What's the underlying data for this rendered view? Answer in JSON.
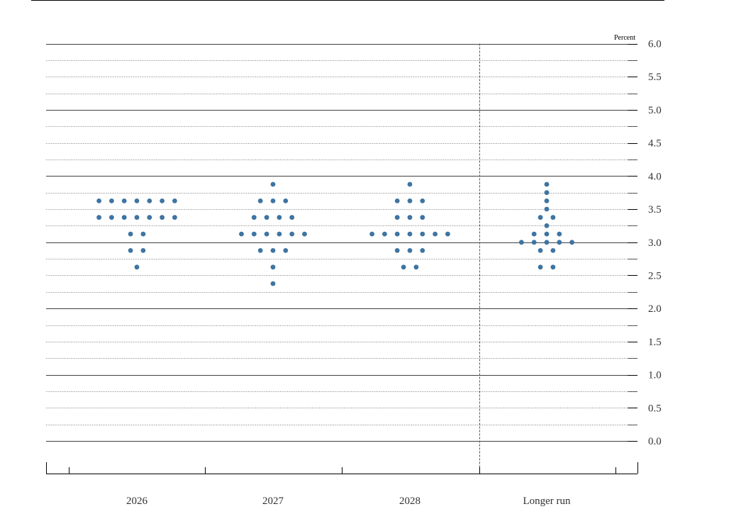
{
  "chart_data": {
    "type": "scatter",
    "unit_label": "Percent",
    "ylim": [
      0,
      6
    ],
    "y_ticks": [
      "6.0",
      "5.5",
      "5.0",
      "4.5",
      "4.0",
      "3.5",
      "3.0",
      "2.5",
      "2.0",
      "1.5",
      "1.0",
      "0.5",
      "0.0"
    ],
    "categories": [
      "2026",
      "2027",
      "2028",
      "Longer run"
    ],
    "dot_color": "#3e74a2",
    "series": [
      {
        "category": "2026",
        "points": [
          {
            "y": 3.625,
            "count": 7
          },
          {
            "y": 3.375,
            "count": 7
          },
          {
            "y": 3.125,
            "count": 2
          },
          {
            "y": 2.875,
            "count": 2
          },
          {
            "y": 2.625,
            "count": 1
          }
        ]
      },
      {
        "category": "2027",
        "points": [
          {
            "y": 3.875,
            "count": 1
          },
          {
            "y": 3.625,
            "count": 3
          },
          {
            "y": 3.375,
            "count": 4
          },
          {
            "y": 3.125,
            "count": 6
          },
          {
            "y": 2.875,
            "count": 3
          },
          {
            "y": 2.625,
            "count": 1
          },
          {
            "y": 2.375,
            "count": 1
          }
        ]
      },
      {
        "category": "2028",
        "points": [
          {
            "y": 3.875,
            "count": 1
          },
          {
            "y": 3.625,
            "count": 3
          },
          {
            "y": 3.375,
            "count": 3
          },
          {
            "y": 3.125,
            "count": 7
          },
          {
            "y": 2.875,
            "count": 3
          },
          {
            "y": 2.625,
            "count": 2
          }
        ]
      },
      {
        "category": "Longer run",
        "points": [
          {
            "y": 3.875,
            "count": 1
          },
          {
            "y": 3.75,
            "count": 1
          },
          {
            "y": 3.625,
            "count": 1
          },
          {
            "y": 3.5,
            "count": 1
          },
          {
            "y": 3.375,
            "count": 2
          },
          {
            "y": 3.25,
            "count": 1
          },
          {
            "y": 3.125,
            "count": 3
          },
          {
            "y": 3.0,
            "count": 5
          },
          {
            "y": 2.875,
            "count": 2
          },
          {
            "y": 2.625,
            "count": 2
          }
        ]
      }
    ],
    "grid": true,
    "separator_before": "Longer run"
  }
}
